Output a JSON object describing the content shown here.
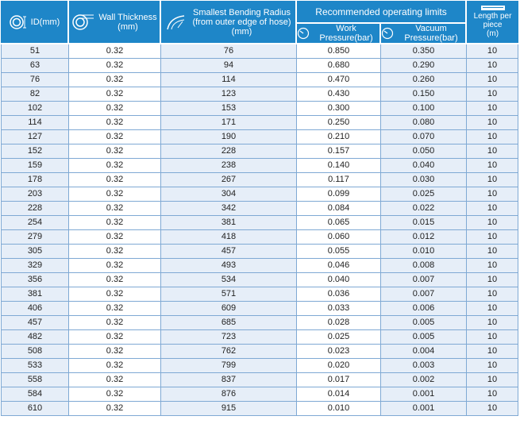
{
  "header": {
    "id": "ID(mm)",
    "wall_thickness": "Wall Thickness (mm)",
    "wall_thickness_l1": "Wall Thickness",
    "wall_thickness_l2": "(mm)",
    "bending_l1": "Smallest Bending Radius",
    "bending_l2": "(from outer edge of hose)",
    "bending_l3": "(mm)",
    "limits": "Recommended operating limits",
    "work_pressure": "Work Pressure(bar)",
    "vacuum_pressure": "Vacuum Pressure(bar)",
    "length_l1": "Length per piece",
    "length_l2": "(m)"
  },
  "icons": {
    "id": "ring-icon",
    "wall": "tube-icon",
    "bending": "bend-radius-icon",
    "work": "pressure-gauge-icon",
    "vacuum": "vacuum-gauge-icon",
    "length": "ruler-icon"
  },
  "colors": {
    "header_bg": "#1e86c8",
    "shade": "#e6eef8",
    "grid": "#7fa9d4"
  },
  "rows": [
    [
      "51",
      "0.32",
      "76",
      "0.850",
      "0.350",
      "10"
    ],
    [
      "63",
      "0.32",
      "94",
      "0.680",
      "0.290",
      "10"
    ],
    [
      "76",
      "0.32",
      "114",
      "0.470",
      "0.260",
      "10"
    ],
    [
      "82",
      "0.32",
      "123",
      "0.430",
      "0.150",
      "10"
    ],
    [
      "102",
      "0.32",
      "153",
      "0.300",
      "0.100",
      "10"
    ],
    [
      "114",
      "0.32",
      "171",
      "0.250",
      "0.080",
      "10"
    ],
    [
      "127",
      "0.32",
      "190",
      "0.210",
      "0.070",
      "10"
    ],
    [
      "152",
      "0.32",
      "228",
      "0.157",
      "0.050",
      "10"
    ],
    [
      "159",
      "0.32",
      "238",
      "0.140",
      "0.040",
      "10"
    ],
    [
      "178",
      "0.32",
      "267",
      "0.117",
      "0.030",
      "10"
    ],
    [
      "203",
      "0.32",
      "304",
      "0.099",
      "0.025",
      "10"
    ],
    [
      "228",
      "0.32",
      "342",
      "0.084",
      "0.022",
      "10"
    ],
    [
      "254",
      "0.32",
      "381",
      "0.065",
      "0.015",
      "10"
    ],
    [
      "279",
      "0.32",
      "418",
      "0.060",
      "0.012",
      "10"
    ],
    [
      "305",
      "0.32",
      "457",
      "0.055",
      "0.010",
      "10"
    ],
    [
      "329",
      "0.32",
      "493",
      "0.046",
      "0.008",
      "10"
    ],
    [
      "356",
      "0.32",
      "534",
      "0.040",
      "0.007",
      "10"
    ],
    [
      "381",
      "0.32",
      "571",
      "0.036",
      "0.007",
      "10"
    ],
    [
      "406",
      "0.32",
      "609",
      "0.033",
      "0.006",
      "10"
    ],
    [
      "457",
      "0.32",
      "685",
      "0.028",
      "0.005",
      "10"
    ],
    [
      "482",
      "0.32",
      "723",
      "0.025",
      "0.005",
      "10"
    ],
    [
      "508",
      "0.32",
      "762",
      "0.023",
      "0.004",
      "10"
    ],
    [
      "533",
      "0.32",
      "799",
      "0.020",
      "0.003",
      "10"
    ],
    [
      "558",
      "0.32",
      "837",
      "0.017",
      "0.002",
      "10"
    ],
    [
      "584",
      "0.32",
      "876",
      "0.014",
      "0.001",
      "10"
    ],
    [
      "610",
      "0.32",
      "915",
      "0.010",
      "0.001",
      "10"
    ]
  ]
}
